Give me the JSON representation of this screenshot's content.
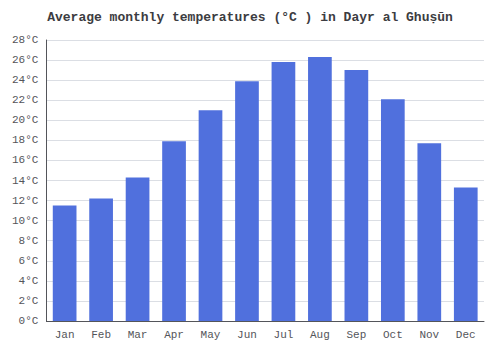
{
  "chart_data": {
    "type": "bar",
    "title": "Average monthly temperatures (°C ) in Dayr al Ghuṣūn",
    "categories": [
      "Jan",
      "Feb",
      "Mar",
      "Apr",
      "May",
      "Jun",
      "Jul",
      "Aug",
      "Sep",
      "Oct",
      "Nov",
      "Dec"
    ],
    "values": [
      11.5,
      12.2,
      14.3,
      17.9,
      21.0,
      23.9,
      25.8,
      26.3,
      25.0,
      22.1,
      17.7,
      13.3
    ],
    "ylim": [
      0,
      28
    ],
    "yticks": [
      {
        "value": 0,
        "label": "0°C"
      },
      {
        "value": 2,
        "label": "2°C"
      },
      {
        "value": 4,
        "label": "4°C"
      },
      {
        "value": 6,
        "label": "6°C"
      },
      {
        "value": 8,
        "label": "8°C"
      },
      {
        "value": 10,
        "label": "10°C"
      },
      {
        "value": 12,
        "label": "12°C"
      },
      {
        "value": 14,
        "label": "14°C"
      },
      {
        "value": 16,
        "label": "16°C"
      },
      {
        "value": 18,
        "label": "18°C"
      },
      {
        "value": 20,
        "label": "20°C"
      },
      {
        "value": 22,
        "label": "22°C"
      },
      {
        "value": 24,
        "label": "24°C"
      },
      {
        "value": 26,
        "label": "26°C"
      },
      {
        "value": 28,
        "label": "28°C"
      }
    ],
    "grid": true
  }
}
